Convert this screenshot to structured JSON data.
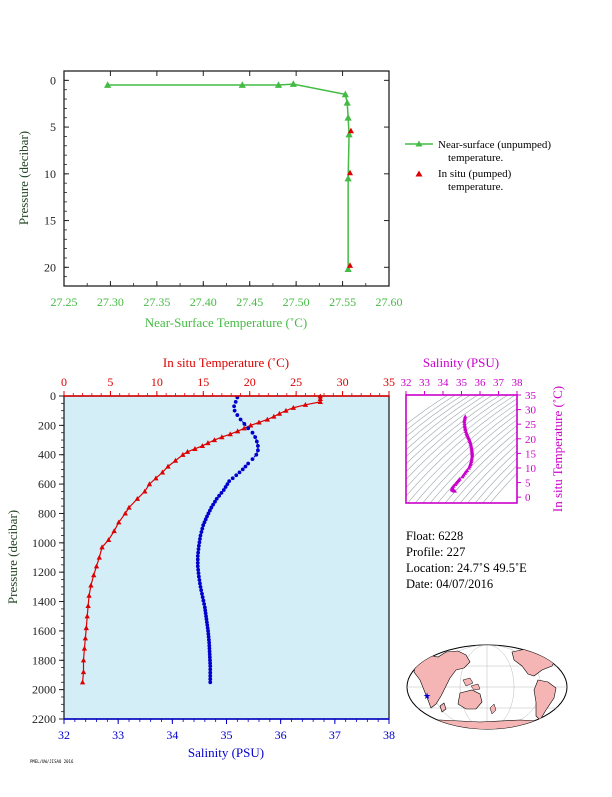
{
  "colors": {
    "green": "#44bb44",
    "red": "#dd0000",
    "blue": "#0000cc",
    "magenta": "#cc00cc",
    "axis_dark": "#222222",
    "plot_bg": "#d4eef8",
    "land": "#f5b5b5",
    "ocean": "#ffffff"
  },
  "chart_data": [
    {
      "type": "line",
      "title": "",
      "xlabel": "Near-Surface Temperature (˚C)",
      "ylabel": "Pressure (decibar)",
      "xlim": [
        27.25,
        27.6
      ],
      "ylim": [
        22,
        -1
      ],
      "x_ticks": [
        "27.25",
        "27.30",
        "27.35",
        "27.40",
        "27.45",
        "27.50",
        "27.55",
        "27.60"
      ],
      "y_ticks": [
        "0",
        "5",
        "10",
        "15",
        "20"
      ],
      "series": [
        {
          "name": "Near-surface (unpumped) temperature.",
          "marker": "triangle",
          "color": "#44bb44",
          "points": [
            [
              27.297,
              0.5
            ],
            [
              27.442,
              0.5
            ],
            [
              27.481,
              0.5
            ],
            [
              27.497,
              0.4
            ],
            [
              27.553,
              1.5
            ],
            [
              27.555,
              2.4
            ],
            [
              27.556,
              4.0
            ],
            [
              27.557,
              5.8
            ],
            [
              27.556,
              10.5
            ],
            [
              27.556,
              20.2
            ]
          ]
        },
        {
          "name": "In situ (pumped) temperature.",
          "marker": "triangle",
          "color": "#dd0000",
          "points": [
            [
              27.559,
              5.4
            ],
            [
              27.558,
              9.9
            ],
            [
              27.558,
              19.8
            ]
          ]
        }
      ],
      "legend": [
        "Near-surface (unpumped)",
        "temperature.",
        "In situ (pumped)",
        "temperature."
      ]
    },
    {
      "type": "line",
      "title": "",
      "x_top_label": "In situ Temperature (˚C)",
      "x_bottom_label": "Salinity (PSU)",
      "ylabel": "Pressure (decibar)",
      "temperature_range": [
        0,
        35
      ],
      "salinity_range": [
        32,
        38
      ],
      "ylim": [
        2200,
        0
      ],
      "temperature_ticks": [
        "0",
        "5",
        "10",
        "15",
        "20",
        "25",
        "30",
        "35"
      ],
      "salinity_ticks": [
        "32",
        "33",
        "34",
        "35",
        "36",
        "37",
        "38"
      ],
      "y_ticks": [
        "0",
        "200",
        "400",
        "600",
        "800",
        "1000",
        "1200",
        "1400",
        "1600",
        "1800",
        "2000",
        "2200"
      ],
      "temperature_profile": [
        [
          27.6,
          2
        ],
        [
          27.6,
          20
        ],
        [
          27.6,
          40
        ],
        [
          26.0,
          60
        ],
        [
          24.7,
          80
        ],
        [
          23.9,
          100
        ],
        [
          23.2,
          120
        ],
        [
          22.6,
          140
        ],
        [
          21.9,
          160
        ],
        [
          21.0,
          180
        ],
        [
          20.1,
          200
        ],
        [
          19.4,
          220
        ],
        [
          18.7,
          240
        ],
        [
          17.9,
          260
        ],
        [
          17.0,
          280
        ],
        [
          16.2,
          300
        ],
        [
          15.5,
          320
        ],
        [
          14.9,
          340
        ],
        [
          14.1,
          360
        ],
        [
          13.3,
          380
        ],
        [
          12.8,
          400
        ],
        [
          12.0,
          440
        ],
        [
          11.2,
          480
        ],
        [
          10.6,
          520
        ],
        [
          9.9,
          560
        ],
        [
          9.2,
          600
        ],
        [
          8.7,
          650
        ],
        [
          7.9,
          700
        ],
        [
          7.0,
          760
        ],
        [
          6.6,
          800
        ],
        [
          5.9,
          860
        ],
        [
          5.4,
          920
        ],
        [
          4.8,
          980
        ],
        [
          4.1,
          1030
        ],
        [
          3.8,
          1100
        ],
        [
          3.5,
          1160
        ],
        [
          3.2,
          1220
        ],
        [
          2.9,
          1290
        ],
        [
          2.7,
          1360
        ],
        [
          2.6,
          1430
        ],
        [
          2.5,
          1500
        ],
        [
          2.4,
          1580
        ],
        [
          2.3,
          1650
        ],
        [
          2.2,
          1720
        ],
        [
          2.1,
          1800
        ],
        [
          2.1,
          1880
        ],
        [
          2.0,
          1950
        ]
      ],
      "salinity_profile": [
        [
          35.2,
          10
        ],
        [
          35.17,
          40
        ],
        [
          35.14,
          70
        ],
        [
          35.15,
          100
        ],
        [
          35.2,
          130
        ],
        [
          35.26,
          160
        ],
        [
          35.33,
          190
        ],
        [
          35.4,
          220
        ],
        [
          35.48,
          250
        ],
        [
          35.53,
          280
        ],
        [
          35.56,
          310
        ],
        [
          35.58,
          340
        ],
        [
          35.58,
          370
        ],
        [
          35.55,
          400
        ],
        [
          35.48,
          430
        ],
        [
          35.4,
          460
        ],
        [
          35.3,
          500
        ],
        [
          35.18,
          540
        ],
        [
          35.05,
          580
        ],
        [
          34.95,
          640
        ],
        [
          34.82,
          700
        ],
        [
          34.72,
          760
        ],
        [
          34.64,
          820
        ],
        [
          34.57,
          880
        ],
        [
          34.52,
          950
        ],
        [
          34.49,
          1020
        ],
        [
          34.47,
          1090
        ],
        [
          34.47,
          1160
        ],
        [
          34.49,
          1230
        ],
        [
          34.52,
          1300
        ],
        [
          34.56,
          1370
        ],
        [
          34.6,
          1440
        ],
        [
          34.63,
          1520
        ],
        [
          34.66,
          1600
        ],
        [
          34.68,
          1680
        ],
        [
          34.69,
          1760
        ],
        [
          34.7,
          1840
        ],
        [
          34.7,
          1950
        ]
      ]
    },
    {
      "type": "scatter",
      "title": "",
      "x_top_label": "Salinity (PSU)",
      "y_right_label": "In situ Temperature (˚C)",
      "xlim": [
        32,
        38
      ],
      "ylim": [
        -2,
        35
      ],
      "x_ticks": [
        "32",
        "33",
        "34",
        "35",
        "36",
        "37",
        "38"
      ],
      "y_ticks": [
        "0",
        "5",
        "10",
        "15",
        "20",
        "25",
        "30",
        "35"
      ],
      "ts_points": [
        [
          35.2,
          27.6
        ],
        [
          35.15,
          26.0
        ],
        [
          35.17,
          24.7
        ],
        [
          35.21,
          23.2
        ],
        [
          35.27,
          21.9
        ],
        [
          35.33,
          21.0
        ],
        [
          35.4,
          20.1
        ],
        [
          35.48,
          18.7
        ],
        [
          35.54,
          17.0
        ],
        [
          35.57,
          15.5
        ],
        [
          35.58,
          14.1
        ],
        [
          35.55,
          12.8
        ],
        [
          35.48,
          11.2
        ],
        [
          35.4,
          10.0
        ],
        [
          35.3,
          9.2
        ],
        [
          35.18,
          8.2
        ],
        [
          35.05,
          7.0
        ],
        [
          34.9,
          6.2
        ],
        [
          34.78,
          5.3
        ],
        [
          34.66,
          4.4
        ],
        [
          34.57,
          3.8
        ],
        [
          34.51,
          3.3
        ],
        [
          34.48,
          2.9
        ],
        [
          34.49,
          2.6
        ],
        [
          34.52,
          2.4
        ],
        [
          34.58,
          2.2
        ],
        [
          34.64,
          2.1
        ],
        [
          34.7,
          2.0
        ]
      ]
    }
  ],
  "float_info": {
    "float": "Float:  6228",
    "profile": "Profile:  227",
    "location": "Location:  24.7˚S  49.5˚E",
    "date": "Date:  04/07/2016"
  },
  "map": {
    "marker_color": "#0000cc",
    "marker_lon": 49.5,
    "marker_lat": -24.7
  },
  "footer": "PMEL/UW/JISAO 2016"
}
